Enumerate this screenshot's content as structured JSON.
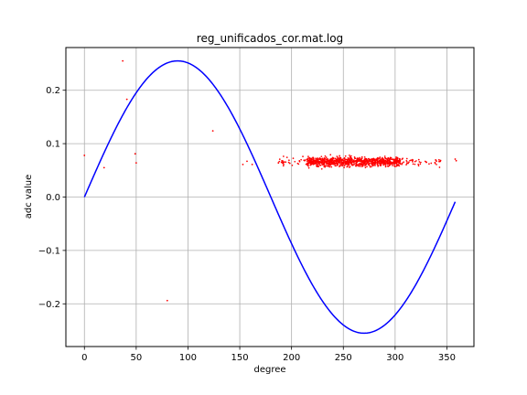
{
  "chart_data": {
    "type": "scatter",
    "title": "reg_unificados_cor.mat.log",
    "xlabel": "degree",
    "ylabel": "adc value",
    "xlim": [
      -17.9,
      376.1
    ],
    "ylim": [
      -0.28,
      0.28
    ],
    "xticks": [
      0,
      50,
      100,
      150,
      200,
      250,
      300,
      350
    ],
    "yticks": [
      -0.2,
      -0.1,
      0.0,
      0.1,
      0.2
    ],
    "xtick_labels": [
      "0",
      "50",
      "100",
      "150",
      "200",
      "250",
      "300",
      "350"
    ],
    "ytick_labels": [
      "−0.2",
      "−0.1",
      "0.0",
      "0.1",
      "0.2"
    ],
    "grid": true,
    "series": [
      {
        "kind": "line",
        "color": "#0000ff",
        "function": "sine",
        "amplitude": 0.255,
        "x_start": 0,
        "x_end": 358
      },
      {
        "kind": "scatter",
        "color": "#ff0000",
        "outliers": [
          {
            "x": 0,
            "y": 0.078
          },
          {
            "x": 19,
            "y": 0.055
          },
          {
            "x": 37,
            "y": 0.255
          },
          {
            "x": 41,
            "y": 0.183
          },
          {
            "x": 49,
            "y": 0.081
          },
          {
            "x": 50,
            "y": 0.064
          },
          {
            "x": 80,
            "y": -0.194
          },
          {
            "x": 124,
            "y": 0.124
          },
          {
            "x": 153,
            "y": 0.061
          },
          {
            "x": 157,
            "y": 0.067
          },
          {
            "x": 162,
            "y": 0.061
          },
          {
            "x": 358,
            "y": 0.071
          },
          {
            "x": 359,
            "y": 0.068
          }
        ],
        "cluster": {
          "x_range": [
            183,
            345
          ],
          "y_center": 0.066,
          "y_spread": 0.006,
          "count": 1000
        }
      }
    ]
  }
}
